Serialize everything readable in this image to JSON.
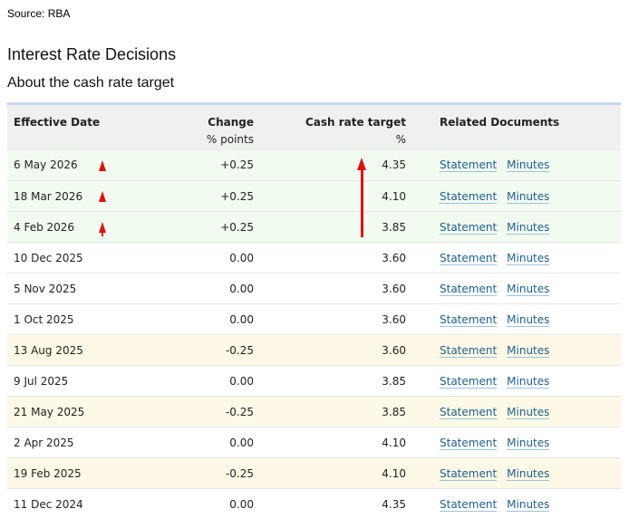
{
  "source": "Source: RBA",
  "title": "Interest Rate Decisions",
  "subtitle": "About the cash rate target",
  "colors": {
    "increase_row": "#f1fbef",
    "decrease_row": "#fdf9e6",
    "header_bg": "#f0f0f0",
    "header_border": "#c6d8ec",
    "link": "#1f5f8e",
    "annotation_arrow": "#dd1111"
  },
  "table": {
    "headers": {
      "date": "Effective Date",
      "change": "Change",
      "change_unit": "% points",
      "rate": "Cash rate target",
      "rate_unit": "%",
      "docs": "Related Documents"
    },
    "rows": [
      {
        "date": "6 May 2026",
        "change": "+0.25",
        "rate": "4.35",
        "statement": "Statement",
        "minutes": "Minutes",
        "type": "increase"
      },
      {
        "date": "18 Mar 2026",
        "change": "+0.25",
        "rate": "4.10",
        "statement": "Statement",
        "minutes": "Minutes",
        "type": "increase"
      },
      {
        "date": "4 Feb 2026",
        "change": "+0.25",
        "rate": "3.85",
        "statement": "Statement",
        "minutes": "Minutes",
        "type": "increase"
      },
      {
        "date": "10 Dec 2025",
        "change": "0.00",
        "rate": "3.60",
        "statement": "Statement",
        "minutes": "Minutes",
        "type": "unchanged"
      },
      {
        "date": "5 Nov 2025",
        "change": "0.00",
        "rate": "3.60",
        "statement": "Statement",
        "minutes": "Minutes",
        "type": "unchanged"
      },
      {
        "date": "1 Oct 2025",
        "change": "0.00",
        "rate": "3.60",
        "statement": "Statement",
        "minutes": "Minutes",
        "type": "unchanged"
      },
      {
        "date": "13 Aug 2025",
        "change": "-0.25",
        "rate": "3.60",
        "statement": "Statement",
        "minutes": "Minutes",
        "type": "decrease"
      },
      {
        "date": "9 Jul 2025",
        "change": "0.00",
        "rate": "3.85",
        "statement": "Statement",
        "minutes": "Minutes",
        "type": "unchanged"
      },
      {
        "date": "21 May 2025",
        "change": "-0.25",
        "rate": "3.85",
        "statement": "Statement",
        "minutes": "Minutes",
        "type": "decrease"
      },
      {
        "date": "2 Apr 2025",
        "change": "0.00",
        "rate": "4.10",
        "statement": "Statement",
        "minutes": "Minutes",
        "type": "unchanged"
      },
      {
        "date": "19 Feb 2025",
        "change": "-0.25",
        "rate": "4.10",
        "statement": "Statement",
        "minutes": "Minutes",
        "type": "decrease"
      },
      {
        "date": "11 Dec 2024",
        "change": "0.00",
        "rate": "4.35",
        "statement": "Statement",
        "minutes": "Minutes",
        "type": "unchanged"
      }
    ]
  },
  "annotations": {
    "row_markers": "up-triangle-icon",
    "rate_trend": "up-arrow-icon"
  }
}
